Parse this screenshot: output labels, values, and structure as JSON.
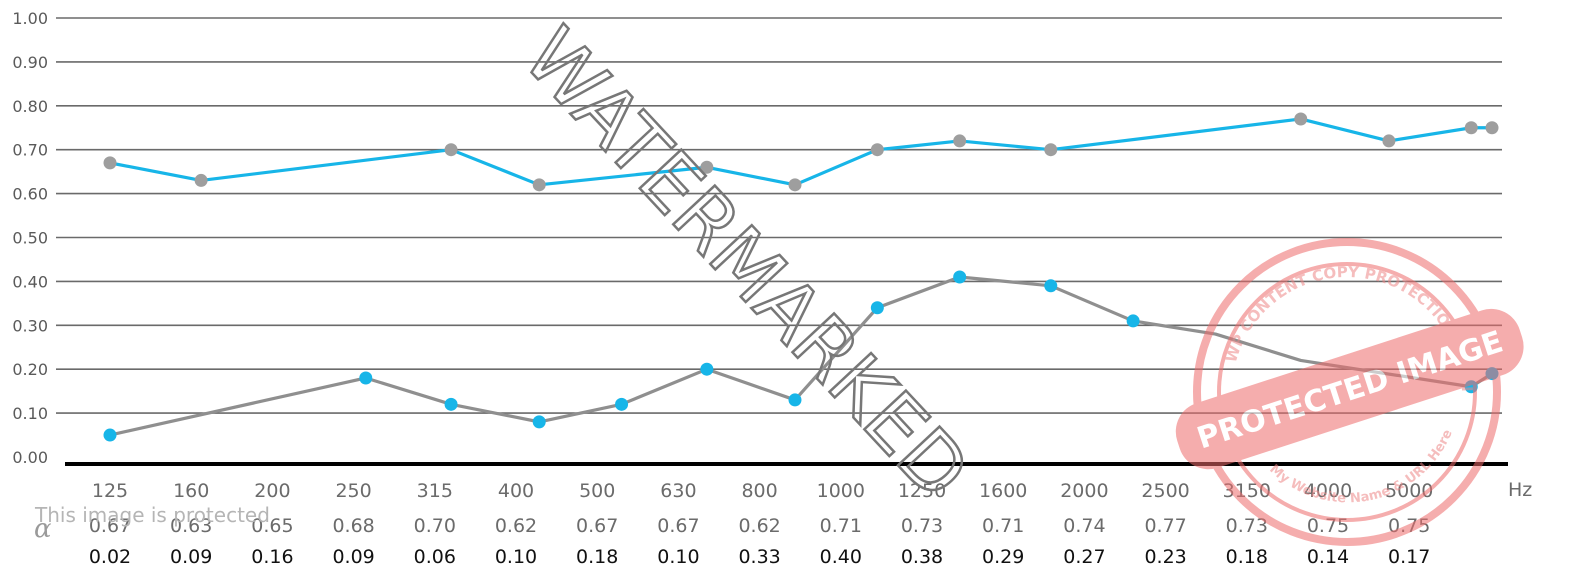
{
  "chart_data": {
    "type": "line",
    "ylim": [
      0,
      1
    ],
    "yticks": [
      "0.00",
      "0.10",
      "0.20",
      "0.30",
      "0.40",
      "0.50",
      "0.60",
      "0.70",
      "0.80",
      "0.90",
      "1.00"
    ],
    "categories": [
      "125",
      "160",
      "200",
      "250",
      "315",
      "400",
      "500",
      "630",
      "800",
      "1000",
      "1250",
      "1600",
      "2000",
      "2500",
      "3150",
      "4000",
      "5000"
    ],
    "x_unit": "Hz",
    "row_symbol": "α",
    "row_a_labels": [
      "0.67",
      "0.63",
      "0.65",
      "0.68",
      "0.70",
      "0.62",
      "0.67",
      "0.67",
      "0.62",
      "0.71",
      "0.73",
      "0.71",
      "0.74",
      "0.77",
      "0.73",
      "0.75",
      "0.75"
    ],
    "row_b_labels": [
      "0.02",
      "0.09",
      "0.16",
      "0.09",
      "0.06",
      "0.10",
      "0.18",
      "0.10",
      "0.33",
      "0.40",
      "0.38",
      "0.29",
      "0.27",
      "0.23",
      "0.18",
      "0.14",
      "0.17"
    ],
    "series": [
      {
        "color": "#17b5e8",
        "marker_color": "#9e9e9e",
        "x": [
          125,
          160,
          315,
          400,
          630,
          800,
          1000,
          1250,
          1600,
          3150,
          4000,
          5000,
          6300
        ],
        "values": [
          0.67,
          0.63,
          0.7,
          0.62,
          0.66,
          0.62,
          0.7,
          0.72,
          0.7,
          0.77,
          0.72,
          0.75,
          0.75
        ]
      },
      {
        "color": "#8f8f8f",
        "marker_color": "#17b5e8",
        "x": [
          125,
          250,
          315,
          400,
          500,
          630,
          800,
          1000,
          1250,
          1600,
          2000,
          2500,
          3150,
          5000,
          6300
        ],
        "values": [
          0.05,
          0.18,
          0.12,
          0.08,
          0.12,
          0.2,
          0.13,
          0.34,
          0.41,
          0.39,
          0.31,
          0.28,
          0.22,
          0.16,
          0.19
        ],
        "hidden_markers": [
          11,
          12
        ]
      }
    ],
    "grid": true
  },
  "overlay": {
    "watermark": "WATERMARKED",
    "protected_note": "This image is protected",
    "stamp_top": "WP CONTENT COPY PROTECTION PLUGIN",
    "stamp_mid": "PROTECTED IMAGE",
    "stamp_bottom": "My Website Name & URL Here"
  }
}
